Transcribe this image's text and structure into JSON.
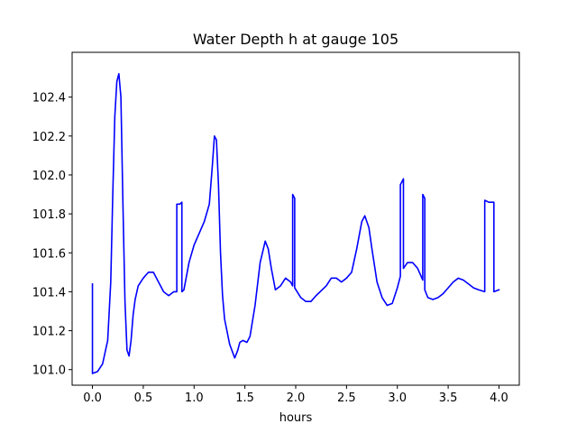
{
  "chart_data": {
    "type": "line",
    "title": "Water Depth h at gauge 105",
    "xlabel": "hours",
    "ylabel": "",
    "xlim": [
      -0.2,
      4.2
    ],
    "ylim": [
      100.92,
      102.63
    ],
    "xticks": [
      0.0,
      0.5,
      1.0,
      1.5,
      2.0,
      2.5,
      3.0,
      3.5,
      4.0
    ],
    "xtick_labels": [
      "0.0",
      "0.5",
      "1.0",
      "1.5",
      "2.0",
      "2.5",
      "3.0",
      "3.5",
      "4.0"
    ],
    "yticks": [
      101.0,
      101.2,
      101.4,
      101.6,
      101.8,
      102.0,
      102.2,
      102.4
    ],
    "ytick_labels": [
      "101.0",
      "101.2",
      "101.4",
      "101.6",
      "101.8",
      "102.0",
      "102.2",
      "102.4"
    ],
    "grid": false,
    "legend": "none",
    "series": [
      {
        "color": "#0000ff",
        "x": [
          0.0,
          0.0,
          0.05,
          0.1,
          0.15,
          0.18,
          0.2,
          0.22,
          0.24,
          0.26,
          0.28,
          0.3,
          0.32,
          0.34,
          0.36,
          0.38,
          0.4,
          0.42,
          0.45,
          0.5,
          0.55,
          0.6,
          0.65,
          0.7,
          0.75,
          0.8,
          0.83,
          0.83,
          0.86,
          0.88,
          0.88,
          0.9,
          0.95,
          1.0,
          1.05,
          1.1,
          1.15,
          1.18,
          1.2,
          1.22,
          1.24,
          1.26,
          1.28,
          1.3,
          1.35,
          1.4,
          1.43,
          1.45,
          1.48,
          1.52,
          1.55,
          1.6,
          1.65,
          1.7,
          1.73,
          1.76,
          1.8,
          1.85,
          1.9,
          1.95,
          1.97,
          1.97,
          1.99,
          1.99,
          2.05,
          2.1,
          2.15,
          2.2,
          2.3,
          2.35,
          2.4,
          2.45,
          2.5,
          2.55,
          2.6,
          2.65,
          2.68,
          2.72,
          2.75,
          2.8,
          2.85,
          2.9,
          2.95,
          3.0,
          3.03,
          3.03,
          3.06,
          3.06,
          3.1,
          3.15,
          3.2,
          3.25,
          3.25,
          3.27,
          3.27,
          3.3,
          3.35,
          3.4,
          3.45,
          3.5,
          3.55,
          3.6,
          3.65,
          3.7,
          3.75,
          3.8,
          3.86,
          3.86,
          3.9,
          3.95,
          3.95,
          4.0
        ],
        "y": [
          101.44,
          100.98,
          100.99,
          101.03,
          101.15,
          101.45,
          101.9,
          102.3,
          102.48,
          102.52,
          102.4,
          101.85,
          101.35,
          101.1,
          101.07,
          101.15,
          101.28,
          101.36,
          101.43,
          101.47,
          101.5,
          101.5,
          101.45,
          101.4,
          101.38,
          101.4,
          101.4,
          101.85,
          101.85,
          101.86,
          101.4,
          101.41,
          101.55,
          101.64,
          101.7,
          101.76,
          101.85,
          102.05,
          102.2,
          102.18,
          101.95,
          101.6,
          101.38,
          101.26,
          101.13,
          101.06,
          101.1,
          101.14,
          101.15,
          101.14,
          101.17,
          101.33,
          101.55,
          101.66,
          101.62,
          101.52,
          101.41,
          101.43,
          101.47,
          101.45,
          101.43,
          101.9,
          101.88,
          101.42,
          101.37,
          101.35,
          101.35,
          101.38,
          101.43,
          101.47,
          101.47,
          101.45,
          101.47,
          101.5,
          101.62,
          101.76,
          101.79,
          101.73,
          101.62,
          101.45,
          101.37,
          101.33,
          101.34,
          101.42,
          101.48,
          101.95,
          101.98,
          101.52,
          101.55,
          101.55,
          101.52,
          101.46,
          101.9,
          101.88,
          101.41,
          101.37,
          101.36,
          101.37,
          101.39,
          101.42,
          101.45,
          101.47,
          101.46,
          101.44,
          101.42,
          101.41,
          101.4,
          101.87,
          101.86,
          101.86,
          101.4,
          101.41
        ]
      }
    ]
  }
}
